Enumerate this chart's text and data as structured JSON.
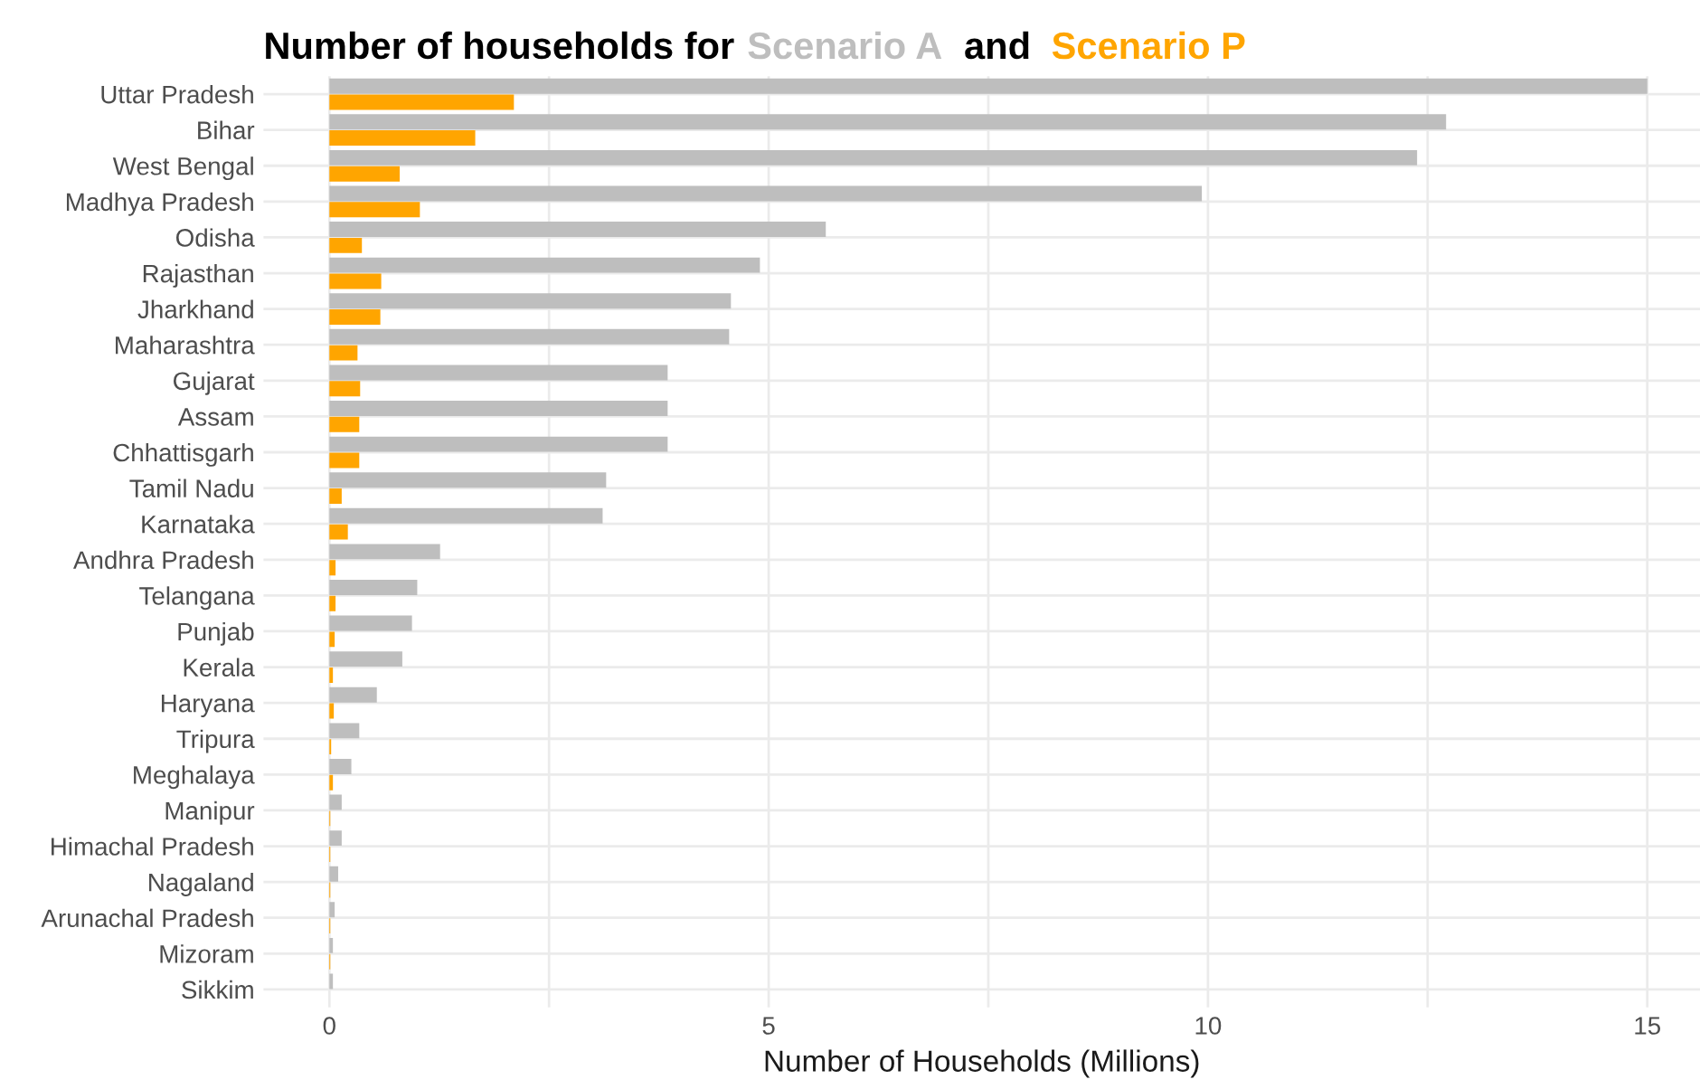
{
  "chart_data": {
    "type": "bar",
    "orientation": "horizontal",
    "title": "Number of households for",
    "annotations": [
      "and"
    ],
    "xlabel": "Number of Households (Millions)",
    "categories": [
      "Uttar Pradesh",
      "Bihar",
      "West Bengal",
      "Madhya Pradesh",
      "Odisha",
      "Rajasthan",
      "Jharkhand",
      "Maharashtra",
      "Gujarat",
      "Assam",
      "Chhattisgarh",
      "Tamil Nadu",
      "Karnataka",
      "Andhra Pradesh",
      "Telangana",
      "Punjab",
      "Kerala",
      "Haryana",
      "Tripura",
      "Meghalaya",
      "Manipur",
      "Himachal Pradesh",
      "Nagaland",
      "Arunachal Pradesh",
      "Mizoram",
      "Sikkim"
    ],
    "series": [
      {
        "name": "Scenario A",
        "color": "#bebebe",
        "values": [
          15.0,
          12.71,
          12.38,
          9.93,
          5.65,
          4.9,
          4.57,
          4.55,
          3.85,
          3.85,
          3.85,
          3.15,
          3.11,
          1.26,
          1.0,
          0.94,
          0.83,
          0.54,
          0.34,
          0.25,
          0.14,
          0.14,
          0.1,
          0.06,
          0.04,
          0.04
        ]
      },
      {
        "name": "Scenario P",
        "color": "#ffa500",
        "values": [
          2.1,
          1.66,
          0.8,
          1.03,
          0.37,
          0.59,
          0.58,
          0.32,
          0.35,
          0.34,
          0.34,
          0.14,
          0.21,
          0.07,
          0.07,
          0.06,
          0.04,
          0.05,
          0.02,
          0.04,
          0.01,
          0.01,
          0.01,
          0.01,
          0.01,
          null
        ]
      }
    ],
    "xlim": [
      -0.75,
      15.6
    ],
    "xticks": [
      0,
      {
        "value": 2.5,
        "label": null
      },
      5,
      {
        "value": 7.5,
        "label": null
      },
      10,
      {
        "value": 12.5,
        "label": null
      },
      15
    ],
    "grid": true,
    "legend": false
  }
}
